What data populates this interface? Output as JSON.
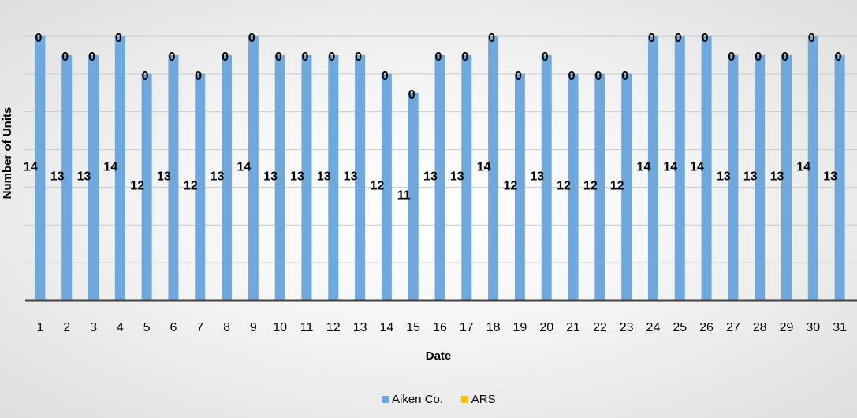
{
  "chart_data": {
    "type": "bar",
    "stacked": true,
    "categories": [
      "1",
      "2",
      "3",
      "4",
      "5",
      "6",
      "7",
      "8",
      "9",
      "10",
      "11",
      "12",
      "13",
      "14",
      "15",
      "16",
      "17",
      "18",
      "19",
      "20",
      "21",
      "22",
      "23",
      "24",
      "25",
      "26",
      "27",
      "28",
      "29",
      "30",
      "31"
    ],
    "series": [
      {
        "name": "Aiken Co.",
        "color": "#6fa8dc",
        "values": [
          14,
          13,
          13,
          14,
          12,
          13,
          12,
          13,
          14,
          13,
          13,
          13,
          13,
          12,
          11,
          13,
          13,
          14,
          12,
          13,
          12,
          12,
          12,
          14,
          14,
          14,
          13,
          13,
          13,
          14,
          13
        ]
      },
      {
        "name": "ARS",
        "color": "#ffc000",
        "values": [
          0,
          0,
          0,
          0,
          0,
          0,
          0,
          0,
          0,
          0,
          0,
          0,
          0,
          0,
          0,
          0,
          0,
          0,
          0,
          0,
          0,
          0,
          0,
          0,
          0,
          0,
          0,
          0,
          0,
          0,
          0
        ]
      }
    ],
    "xlabel": "Date",
    "ylabel": "Number of Units",
    "ylim": [
      0,
      14
    ],
    "grid": true,
    "legend_position": "bottom"
  }
}
